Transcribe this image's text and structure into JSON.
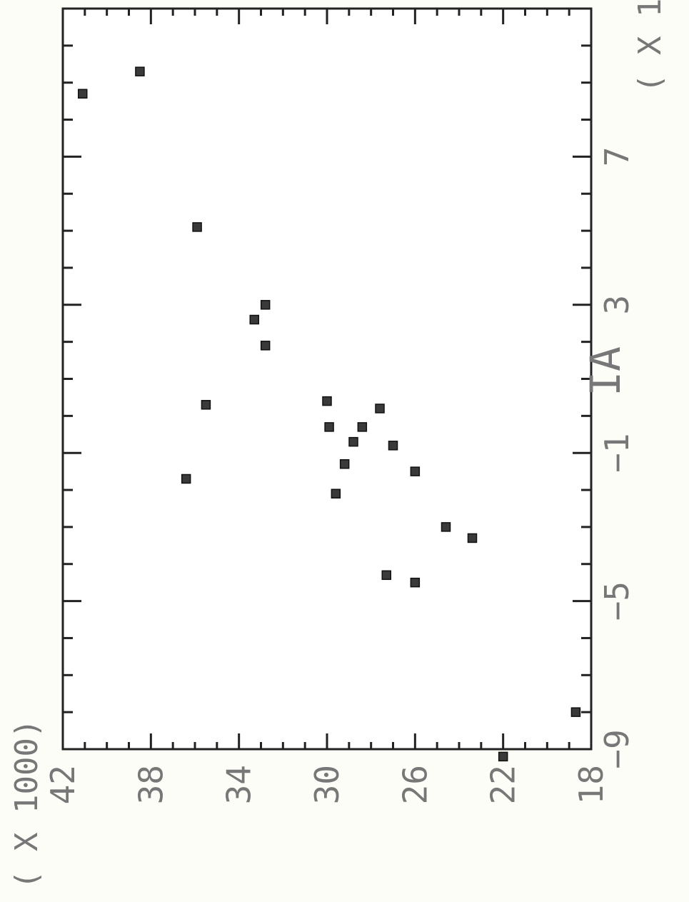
{
  "chart_data": {
    "type": "scatter",
    "orientation": "rotated 90° clockwise (x axis runs bottom-to-top on the right edge, y axis runs left-to-right along the bottom)",
    "title": "",
    "xlabel": "IA",
    "ylabel": "",
    "x_multiplier_label": "( X 1",
    "y_multiplier_label": "( X 1000)",
    "xlim": [
      -9,
      11
    ],
    "ylim": [
      18,
      42
    ],
    "x_ticks": [
      -9,
      -5,
      -1,
      3,
      7
    ],
    "x_tick_labels": [
      "−9",
      "−5",
      "−1",
      "3",
      "7"
    ],
    "y_ticks": [
      18,
      22,
      26,
      30,
      34,
      38,
      42
    ],
    "y_tick_labels": [
      "18",
      "22",
      "26",
      "30",
      "34",
      "38",
      "42"
    ],
    "grid": false,
    "series": [
      {
        "marker": "square",
        "color": "#3a3a3a",
        "points": [
          {
            "x": 8.7,
            "y": 41.1
          },
          {
            "x": 9.3,
            "y": 38.5
          },
          {
            "x": 5.1,
            "y": 35.9
          },
          {
            "x": 3.0,
            "y": 32.8
          },
          {
            "x": 2.6,
            "y": 33.3
          },
          {
            "x": 1.9,
            "y": 32.8
          },
          {
            "x": 0.3,
            "y": 35.5
          },
          {
            "x": 0.4,
            "y": 30.0
          },
          {
            "x": 0.2,
            "y": 27.6
          },
          {
            "x": -0.3,
            "y": 28.4
          },
          {
            "x": -0.3,
            "y": 29.9
          },
          {
            "x": -0.7,
            "y": 28.8
          },
          {
            "x": -0.8,
            "y": 27.0
          },
          {
            "x": -1.3,
            "y": 29.2
          },
          {
            "x": -1.5,
            "y": 26.0
          },
          {
            "x": -1.7,
            "y": 36.4
          },
          {
            "x": -2.1,
            "y": 29.6
          },
          {
            "x": -3.0,
            "y": 24.6
          },
          {
            "x": -3.3,
            "y": 23.4
          },
          {
            "x": -4.3,
            "y": 27.3
          },
          {
            "x": -4.5,
            "y": 26.0
          },
          {
            "x": -8.0,
            "y": 18.7
          },
          {
            "x": -9.2,
            "y": 22.0
          }
        ]
      }
    ]
  }
}
